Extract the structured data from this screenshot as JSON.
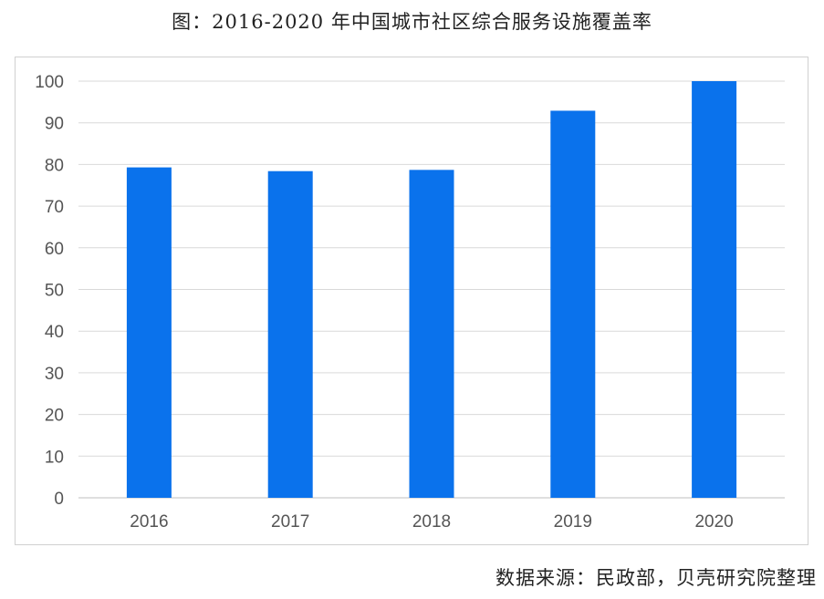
{
  "title": "图：2016-2020 年中国城市社区综合服务设施覆盖率",
  "source": "数据来源：民政部，贝壳研究院整理",
  "colors": {
    "bar": "#0a72ec",
    "grid": "#d9d9d9",
    "axis": "#bfbfbf",
    "text": "#555555"
  },
  "chart_data": {
    "type": "bar",
    "title": "图：2016-2020 年中国城市社区综合服务设施覆盖率",
    "xlabel": "",
    "ylabel": "",
    "categories": [
      "2016",
      "2017",
      "2018",
      "2019",
      "2020"
    ],
    "values": [
      79.3,
      78.4,
      78.7,
      92.9,
      100
    ],
    "ylim": [
      0,
      100
    ],
    "yticks": [
      "0",
      "10",
      "20",
      "30",
      "40",
      "50",
      "60",
      "70",
      "80",
      "90",
      "100"
    ],
    "grid": true,
    "legend": "none"
  }
}
